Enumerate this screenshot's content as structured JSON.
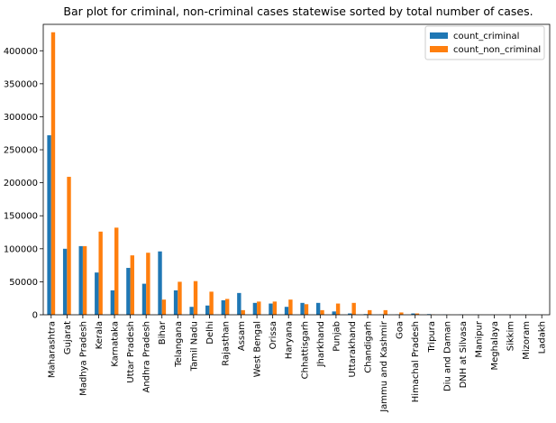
{
  "chart_data": {
    "type": "bar",
    "title": "Bar plot for criminal, non-criminal cases statewise sorted by total number of cases.",
    "xlabel": "",
    "ylabel": "",
    "ylim": [
      0,
      440000
    ],
    "yticks": [
      0,
      50000,
      100000,
      150000,
      200000,
      250000,
      300000,
      350000,
      400000
    ],
    "grid": false,
    "legend_position": "top-right",
    "categories": [
      "Maharashtra",
      "Gujarat",
      "Madhya Pradesh",
      "Kerala",
      "Karnataka",
      "Uttar Pradesh",
      "Andhra Pradesh",
      "Bihar",
      "Telangana",
      "Tamil Nadu",
      "Delhi",
      "Rajasthan",
      "Assam",
      "West Bengal",
      "Orissa",
      "Haryana",
      "Chhattisgarh",
      "Jharkhand",
      "Punjab",
      "Uttarakhand",
      "Chandigarh",
      "Jammu and Kashmir",
      "Goa",
      "Himachal Pradesh",
      "Tripura",
      "Diu and Daman",
      "DNH at Silvasa",
      "Manipur",
      "Meghalaya",
      "Sikkim",
      "Mizoram",
      "Ladakh"
    ],
    "series": [
      {
        "name": "count_criminal",
        "color": "#1f77b4",
        "values": [
          272000,
          100000,
          104000,
          64000,
          37000,
          71000,
          47000,
          96000,
          37000,
          12000,
          14000,
          22000,
          33000,
          18000,
          17000,
          12000,
          18000,
          18000,
          5000,
          2000,
          1000,
          500,
          500,
          2000,
          1000,
          300,
          200,
          100,
          100,
          100,
          50,
          50
        ]
      },
      {
        "name": "count_non_criminal",
        "color": "#ff7f0e",
        "values": [
          428000,
          209000,
          104000,
          126000,
          132000,
          90000,
          94000,
          23000,
          50000,
          51000,
          35000,
          24000,
          7000,
          20000,
          20000,
          23000,
          16000,
          7000,
          17000,
          18000,
          7000,
          7000,
          3500,
          2000,
          500,
          200,
          100,
          100,
          50,
          50,
          50,
          50
        ]
      }
    ]
  }
}
